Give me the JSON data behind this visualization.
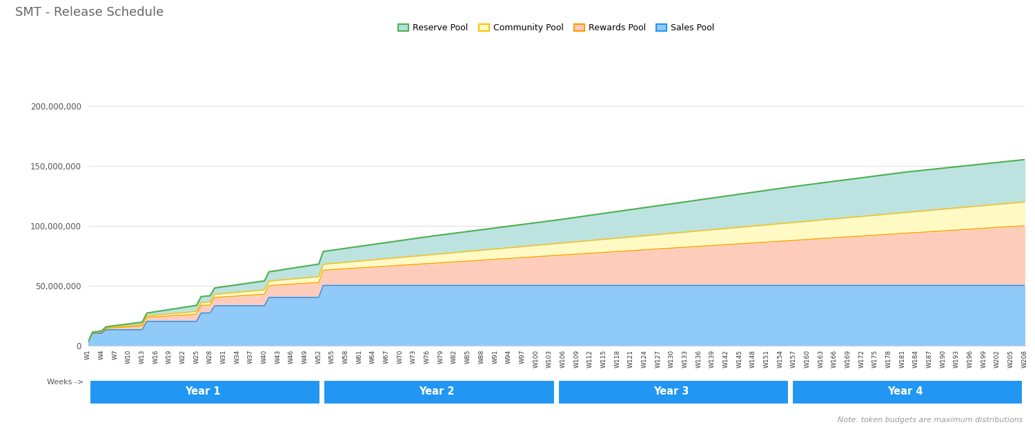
{
  "title": "SMT - Release Schedule",
  "title_color": "#666666",
  "background_color": "#ffffff",
  "legend_labels": [
    "Reserve Pool",
    "Community Pool",
    "Rewards Pool",
    "Sales Pool"
  ],
  "legend_colors": [
    "#4caf50",
    "#ffc107",
    "#ff9800",
    "#4fa8e8"
  ],
  "fill_colors_reserve": "#b2dfdb",
  "fill_colors_community": "#fff9c4",
  "fill_colors_rewards": "#ffccbc",
  "fill_colors_sales": "#90caf9",
  "line_color_reserve": "#4caf50",
  "line_color_community": "#ffc107",
  "line_color_rewards": "#ff9800",
  "line_color_sales": "#2196f3",
  "ylabel_ticks": [
    0,
    50000000,
    100000000,
    150000000,
    200000000
  ],
  "ylabel_labels": [
    "0",
    "50,000,000",
    "100,000,000",
    "150,000,000",
    "200,000,000"
  ],
  "ylim": [
    0,
    215000000
  ],
  "note": "Note: token budgets are maximum distributions",
  "year_labels": [
    "Year 1",
    "Year 2",
    "Year 3",
    "Year 4"
  ],
  "year_ranges": [
    [
      1,
      52
    ],
    [
      53,
      104
    ],
    [
      105,
      156
    ],
    [
      157,
      208
    ]
  ],
  "week_ticks": [
    1,
    4,
    7,
    10,
    13,
    16,
    19,
    22,
    25,
    28,
    31,
    34,
    37,
    40,
    43,
    46,
    49,
    52,
    55,
    58,
    61,
    64,
    67,
    70,
    73,
    76,
    79,
    82,
    85,
    88,
    91,
    94,
    97,
    100,
    103,
    106,
    109,
    112,
    115,
    118,
    121,
    124,
    127,
    130,
    133,
    136,
    139,
    142,
    145,
    148,
    151,
    154,
    157,
    160,
    163,
    166,
    169,
    172,
    175,
    178,
    181,
    184,
    187,
    190,
    193,
    196,
    199,
    202,
    205,
    208
  ],
  "week_labels": [
    "W1",
    "W4",
    "W7",
    "W10",
    "W13",
    "W16",
    "W19",
    "W22",
    "W25",
    "W28",
    "W31",
    "W34",
    "W37",
    "W40",
    "W43",
    "W46",
    "W49",
    "W52",
    "W55",
    "W58",
    "W61",
    "W64",
    "W67",
    "W70",
    "W73",
    "W76",
    "W79",
    "W82",
    "W85",
    "W88",
    "W91",
    "W94",
    "W97",
    "W100",
    "W103",
    "W106",
    "W109",
    "W112",
    "W115",
    "W118",
    "W121",
    "W124",
    "W127",
    "W130",
    "W133",
    "W136",
    "W139",
    "W142",
    "W145",
    "W148",
    "W151",
    "W154",
    "W157",
    "W160",
    "W163",
    "W166",
    "W169",
    "W172",
    "W175",
    "W178",
    "W181",
    "W184",
    "W187",
    "W190",
    "W193",
    "W196",
    "W199",
    "W202",
    "W205",
    "W208"
  ]
}
